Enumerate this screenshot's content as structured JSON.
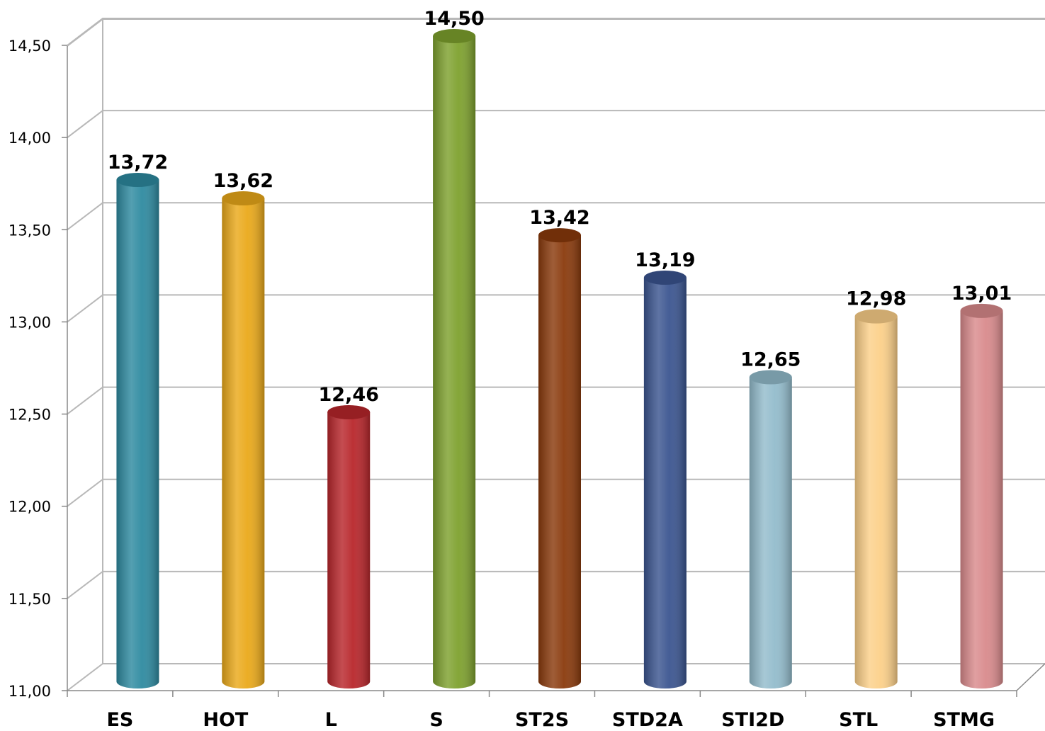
{
  "chart_data": {
    "type": "bar",
    "style": "3d-cylinder",
    "categories": [
      "ES",
      "HOT",
      "L",
      "S",
      "ST2S",
      "STD2A",
      "STI2D",
      "STL",
      "STMG"
    ],
    "values": [
      13.72,
      13.62,
      12.46,
      14.5,
      13.42,
      13.19,
      12.65,
      12.98,
      13.01
    ],
    "data_labels": [
      "13,72",
      "13,62",
      "12,46",
      "14,50",
      "13,42",
      "13,19",
      "12,65",
      "12,98",
      "13,01"
    ],
    "colors": [
      "#2e8aa0",
      "#eaa91a",
      "#b8262b",
      "#7ea12e",
      "#8a3a0c",
      "#3b5590",
      "#93bccc",
      "#fcd089",
      "#d98a8c"
    ],
    "yticks": [
      11,
      11.5,
      12,
      12.5,
      13,
      13.5,
      14,
      14.5
    ],
    "ytick_labels": [
      "11,00",
      "11,50",
      "12,00",
      "12,50",
      "13,00",
      "13,50",
      "14,00",
      "14,50"
    ],
    "ylim": [
      11,
      14.5
    ],
    "grid": true,
    "legend": "none",
    "title": "",
    "xlabel": "",
    "ylabel": ""
  }
}
